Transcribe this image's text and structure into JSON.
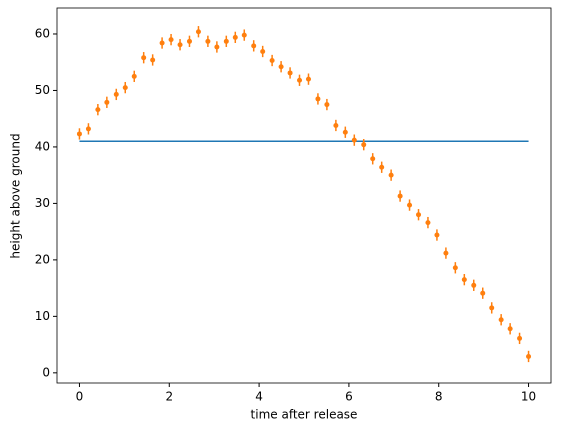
{
  "chart_data": {
    "type": "line",
    "xlabel": "time after release",
    "ylabel": "height above ground",
    "xlim": [
      -0.5,
      10.5
    ],
    "ylim": [
      -1.8,
      64.6
    ],
    "xticks": [
      0,
      2,
      4,
      6,
      8,
      10
    ],
    "yticks": [
      0,
      10,
      20,
      30,
      40,
      50,
      60
    ],
    "series": [
      {
        "style": "line",
        "color": "#1f77b4",
        "x": [
          0,
          10
        ],
        "values": [
          41,
          41
        ]
      },
      {
        "style": "errorbar",
        "color": "#ff7f0e",
        "error": 1,
        "x": [
          0,
          0.2,
          0.41,
          0.61,
          0.82,
          1.02,
          1.22,
          1.43,
          1.63,
          1.84,
          2.04,
          2.24,
          2.45,
          2.65,
          2.86,
          3.06,
          3.27,
          3.47,
          3.67,
          3.88,
          4.08,
          4.29,
          4.49,
          4.69,
          4.9,
          5.1,
          5.31,
          5.51,
          5.71,
          5.92,
          6.12,
          6.33,
          6.53,
          6.73,
          6.94,
          7.14,
          7.35,
          7.55,
          7.76,
          7.96,
          8.16,
          8.37,
          8.57,
          8.78,
          8.98,
          9.18,
          9.39,
          9.59,
          9.8,
          10
        ],
        "values": [
          42.3,
          43.2,
          46.6,
          47.9,
          49.3,
          50.5,
          52.5,
          55.8,
          55.4,
          58.4,
          59.0,
          58.1,
          58.7,
          60.4,
          58.7,
          57.7,
          58.7,
          59.4,
          59.8,
          57.9,
          56.9,
          55.3,
          54.2,
          53.1,
          51.8,
          52.0,
          48.5,
          47.5,
          43.8,
          42.6,
          41.2,
          40.4,
          37.9,
          36.4,
          35.0,
          31.3,
          29.7,
          28.0,
          26.6,
          24.4,
          21.2,
          18.6,
          16.5,
          15.5,
          14.1,
          11.5,
          9.4,
          7.8,
          6.1,
          2.9
        ]
      }
    ]
  }
}
